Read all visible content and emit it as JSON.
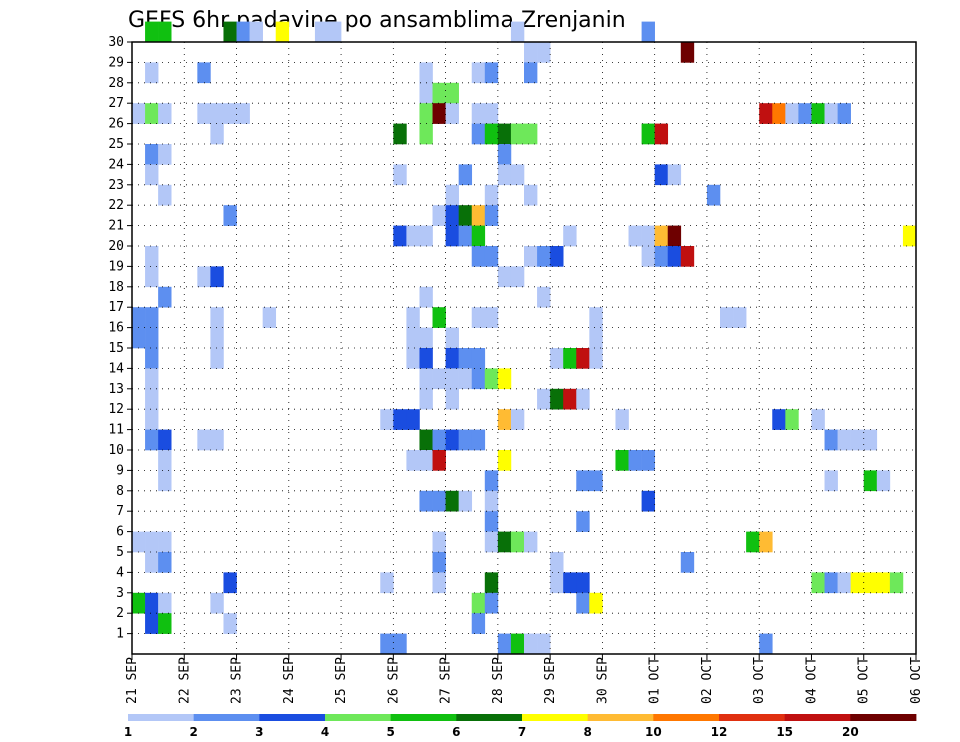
{
  "chart_data": {
    "type": "heatmap",
    "title": "GEFS 6hr padavine po ansamblima Zrenjanin",
    "xlabel": "",
    "ylabel": "",
    "x_tick_labels": [
      "21 SEP",
      "22 SEP",
      "23 SEP",
      "24 SEP",
      "25 SEP",
      "26 SEP",
      "27 SEP",
      "28 SEP",
      "29 SEP",
      "30 SEP",
      "01 OCT",
      "02 OCT",
      "03 OCT",
      "04 OCT",
      "05 OCT",
      "06 OCT"
    ],
    "x_unit": "6-hour steps from 21 SEP 00z",
    "xlim": [
      0,
      60
    ],
    "y_tick_labels": [
      1,
      2,
      3,
      4,
      5,
      6,
      7,
      8,
      9,
      10,
      11,
      12,
      13,
      14,
      15,
      16,
      17,
      18,
      19,
      20,
      21,
      22,
      23,
      24,
      25,
      26,
      27,
      28,
      29,
      30
    ],
    "ylim": [
      0,
      30
    ],
    "grid": true,
    "colorbar": {
      "labels": [
        "1",
        "2",
        "3",
        "4",
        "5",
        "6",
        "7",
        "8",
        "10",
        "12",
        "15",
        "20"
      ],
      "colors": [
        "#b3c7f7",
        "#5d8ff0",
        "#1a4de0",
        "#6ee85a",
        "#10c010",
        "#087008",
        "#ffff00",
        "#ffbb33",
        "#ff7700",
        "#e03010",
        "#c01010",
        "#6e0000"
      ]
    },
    "cells": [
      [
        1,
        30,
        5
      ],
      [
        2,
        30,
        5
      ],
      [
        7,
        30,
        6
      ],
      [
        8,
        30,
        2
      ],
      [
        9,
        30,
        1
      ],
      [
        11,
        30,
        7
      ],
      [
        14,
        30,
        1
      ],
      [
        15,
        30,
        1
      ],
      [
        29,
        30,
        1
      ],
      [
        39,
        30,
        2
      ],
      [
        30,
        29,
        1
      ],
      [
        31,
        29,
        1
      ],
      [
        42,
        29,
        12
      ],
      [
        1,
        28,
        1
      ],
      [
        5,
        28,
        2
      ],
      [
        22,
        28,
        1
      ],
      [
        26,
        28,
        1
      ],
      [
        27,
        28,
        2
      ],
      [
        30,
        28,
        2
      ],
      [
        22,
        27,
        1
      ],
      [
        23,
        27,
        4
      ],
      [
        24,
        27,
        4
      ],
      [
        0,
        26,
        1
      ],
      [
        1,
        26,
        4
      ],
      [
        2,
        26,
        1
      ],
      [
        5,
        26,
        1
      ],
      [
        6,
        26,
        1
      ],
      [
        7,
        26,
        1
      ],
      [
        8,
        26,
        1
      ],
      [
        22,
        26,
        4
      ],
      [
        23,
        26,
        12
      ],
      [
        24,
        26,
        1
      ],
      [
        26,
        26,
        1
      ],
      [
        27,
        26,
        1
      ],
      [
        48,
        26,
        11
      ],
      [
        49,
        26,
        9
      ],
      [
        50,
        26,
        1
      ],
      [
        51,
        26,
        2
      ],
      [
        52,
        26,
        5
      ],
      [
        53,
        26,
        1
      ],
      [
        54,
        26,
        2
      ],
      [
        6,
        25,
        1
      ],
      [
        20,
        25,
        6
      ],
      [
        22,
        25,
        4
      ],
      [
        26,
        25,
        2
      ],
      [
        27,
        25,
        5
      ],
      [
        28,
        25,
        6
      ],
      [
        29,
        25,
        4
      ],
      [
        30,
        25,
        4
      ],
      [
        39,
        25,
        5
      ],
      [
        40,
        25,
        11
      ],
      [
        1,
        24,
        2
      ],
      [
        2,
        24,
        1
      ],
      [
        28,
        24,
        2
      ],
      [
        1,
        23,
        1
      ],
      [
        20,
        23,
        1
      ],
      [
        25,
        23,
        2
      ],
      [
        28,
        23,
        1
      ],
      [
        29,
        23,
        1
      ],
      [
        40,
        23,
        3
      ],
      [
        41,
        23,
        1
      ],
      [
        2,
        22,
        1
      ],
      [
        24,
        22,
        1
      ],
      [
        27,
        22,
        1
      ],
      [
        30,
        22,
        1
      ],
      [
        44,
        22,
        2
      ],
      [
        7,
        21,
        2
      ],
      [
        23,
        21,
        1
      ],
      [
        24,
        21,
        3
      ],
      [
        25,
        21,
        6
      ],
      [
        26,
        21,
        8
      ],
      [
        27,
        21,
        2
      ],
      [
        20,
        20,
        3
      ],
      [
        21,
        20,
        1
      ],
      [
        22,
        20,
        1
      ],
      [
        24,
        20,
        3
      ],
      [
        25,
        20,
        2
      ],
      [
        26,
        20,
        5
      ],
      [
        33,
        20,
        1
      ],
      [
        38,
        20,
        1
      ],
      [
        39,
        20,
        1
      ],
      [
        40,
        20,
        8
      ],
      [
        41,
        20,
        12
      ],
      [
        59,
        20,
        7
      ],
      [
        1,
        19,
        1
      ],
      [
        26,
        19,
        2
      ],
      [
        27,
        19,
        2
      ],
      [
        30,
        19,
        1
      ],
      [
        31,
        19,
        2
      ],
      [
        32,
        19,
        3
      ],
      [
        39,
        19,
        1
      ],
      [
        40,
        19,
        2
      ],
      [
        41,
        19,
        3
      ],
      [
        42,
        19,
        11
      ],
      [
        1,
        18,
        1
      ],
      [
        5,
        18,
        1
      ],
      [
        6,
        18,
        3
      ],
      [
        28,
        18,
        1
      ],
      [
        29,
        18,
        1
      ],
      [
        2,
        17,
        2
      ],
      [
        22,
        17,
        1
      ],
      [
        31,
        17,
        1
      ],
      [
        0,
        16,
        2
      ],
      [
        1,
        16,
        2
      ],
      [
        6,
        16,
        1
      ],
      [
        10,
        16,
        1
      ],
      [
        21,
        16,
        1
      ],
      [
        23,
        16,
        5
      ],
      [
        26,
        16,
        1
      ],
      [
        27,
        16,
        1
      ],
      [
        35,
        16,
        1
      ],
      [
        45,
        16,
        1
      ],
      [
        46,
        16,
        1
      ],
      [
        0,
        15,
        2
      ],
      [
        1,
        15,
        2
      ],
      [
        6,
        15,
        1
      ],
      [
        21,
        15,
        1
      ],
      [
        22,
        15,
        1
      ],
      [
        24,
        15,
        1
      ],
      [
        35,
        15,
        1
      ],
      [
        1,
        14,
        2
      ],
      [
        6,
        14,
        1
      ],
      [
        21,
        14,
        1
      ],
      [
        22,
        14,
        3
      ],
      [
        24,
        14,
        3
      ],
      [
        25,
        14,
        2
      ],
      [
        26,
        14,
        2
      ],
      [
        32,
        14,
        1
      ],
      [
        33,
        14,
        5
      ],
      [
        34,
        14,
        11
      ],
      [
        35,
        14,
        1
      ],
      [
        1,
        13,
        1
      ],
      [
        22,
        13,
        1
      ],
      [
        23,
        13,
        1
      ],
      [
        24,
        13,
        1
      ],
      [
        25,
        13,
        1
      ],
      [
        26,
        13,
        2
      ],
      [
        27,
        13,
        4
      ],
      [
        28,
        13,
        7
      ],
      [
        1,
        12,
        1
      ],
      [
        22,
        12,
        1
      ],
      [
        24,
        12,
        1
      ],
      [
        31,
        12,
        1
      ],
      [
        32,
        12,
        6
      ],
      [
        33,
        12,
        11
      ],
      [
        34,
        12,
        1
      ],
      [
        1,
        11,
        1
      ],
      [
        19,
        11,
        1
      ],
      [
        20,
        11,
        3
      ],
      [
        21,
        11,
        3
      ],
      [
        28,
        11,
        8
      ],
      [
        29,
        11,
        1
      ],
      [
        37,
        11,
        1
      ],
      [
        49,
        11,
        3
      ],
      [
        50,
        11,
        4
      ],
      [
        52,
        11,
        1
      ],
      [
        1,
        10,
        2
      ],
      [
        2,
        10,
        3
      ],
      [
        5,
        10,
        1
      ],
      [
        6,
        10,
        1
      ],
      [
        22,
        10,
        6
      ],
      [
        23,
        10,
        2
      ],
      [
        24,
        10,
        3
      ],
      [
        25,
        10,
        2
      ],
      [
        26,
        10,
        2
      ],
      [
        53,
        10,
        2
      ],
      [
        54,
        10,
        1
      ],
      [
        55,
        10,
        1
      ],
      [
        56,
        10,
        1
      ],
      [
        2,
        9,
        1
      ],
      [
        21,
        9,
        1
      ],
      [
        22,
        9,
        1
      ],
      [
        23,
        9,
        11
      ],
      [
        28,
        9,
        7
      ],
      [
        37,
        9,
        5
      ],
      [
        38,
        9,
        2
      ],
      [
        39,
        9,
        2
      ],
      [
        2,
        8,
        1
      ],
      [
        27,
        8,
        2
      ],
      [
        34,
        8,
        2
      ],
      [
        35,
        8,
        2
      ],
      [
        53,
        8,
        1
      ],
      [
        56,
        8,
        5
      ],
      [
        57,
        8,
        1
      ],
      [
        22,
        7,
        2
      ],
      [
        23,
        7,
        2
      ],
      [
        24,
        7,
        6
      ],
      [
        25,
        7,
        1
      ],
      [
        27,
        7,
        1
      ],
      [
        39,
        7,
        3
      ],
      [
        27,
        6,
        2
      ],
      [
        34,
        6,
        2
      ],
      [
        0,
        5,
        1
      ],
      [
        1,
        5,
        1
      ],
      [
        2,
        5,
        1
      ],
      [
        23,
        5,
        1
      ],
      [
        27,
        5,
        1
      ],
      [
        28,
        5,
        6
      ],
      [
        29,
        5,
        4
      ],
      [
        30,
        5,
        1
      ],
      [
        47,
        5,
        5
      ],
      [
        48,
        5,
        8
      ],
      [
        1,
        4,
        1
      ],
      [
        2,
        4,
        2
      ],
      [
        23,
        4,
        2
      ],
      [
        32,
        4,
        1
      ],
      [
        42,
        4,
        2
      ],
      [
        7,
        3,
        3
      ],
      [
        19,
        3,
        1
      ],
      [
        23,
        3,
        1
      ],
      [
        27,
        3,
        6
      ],
      [
        32,
        3,
        1
      ],
      [
        33,
        3,
        3
      ],
      [
        34,
        3,
        3
      ],
      [
        52,
        3,
        4
      ],
      [
        53,
        3,
        2
      ],
      [
        54,
        3,
        1
      ],
      [
        55,
        3,
        7
      ],
      [
        56,
        3,
        7
      ],
      [
        57,
        3,
        7
      ],
      [
        58,
        3,
        4
      ],
      [
        0,
        2,
        5
      ],
      [
        1,
        2,
        3
      ],
      [
        2,
        2,
        1
      ],
      [
        6,
        2,
        1
      ],
      [
        26,
        2,
        4
      ],
      [
        27,
        2,
        2
      ],
      [
        34,
        2,
        2
      ],
      [
        35,
        2,
        7
      ],
      [
        1,
        1,
        3
      ],
      [
        2,
        1,
        5
      ],
      [
        7,
        1,
        1
      ],
      [
        26,
        1,
        2
      ],
      [
        19,
        0,
        2
      ],
      [
        20,
        0,
        2
      ],
      [
        28,
        0,
        2
      ],
      [
        29,
        0,
        5
      ],
      [
        30,
        0,
        1
      ],
      [
        31,
        0,
        1
      ],
      [
        48,
        0,
        2
      ]
    ]
  }
}
